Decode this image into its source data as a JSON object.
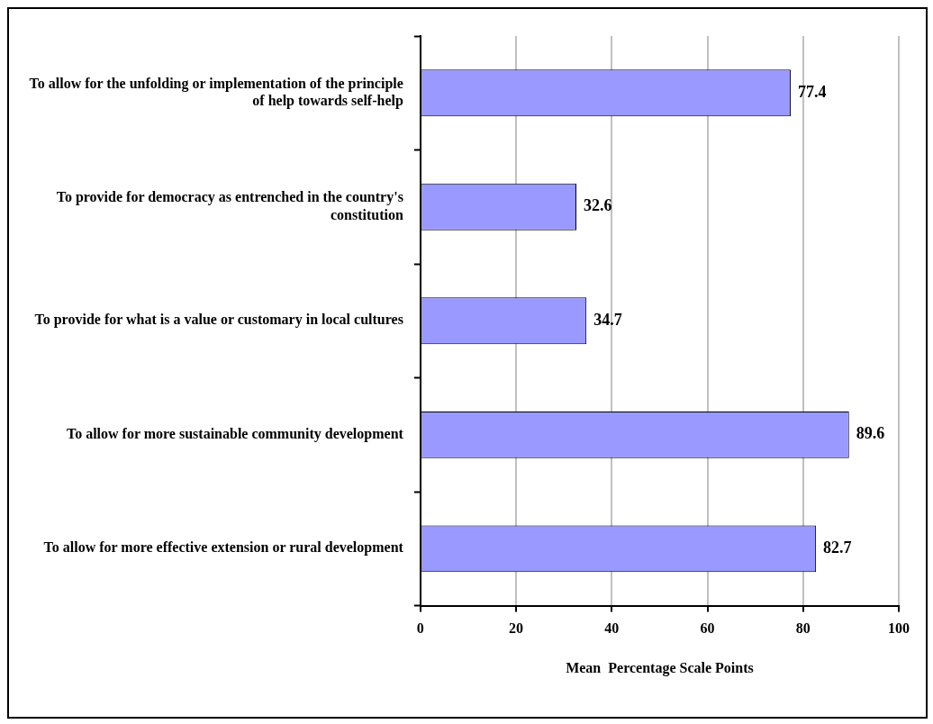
{
  "chart_data": {
    "type": "bar",
    "orientation": "horizontal",
    "xlabel": "Mean  Percentage Scale Points",
    "categories": [
      "To allow for the unfolding or implementation of the principle of help towards self-help",
      "To provide for democracy as entrenched in the country's constitution",
      "To provide for what is a value or customary in local cultures",
      "To allow for more sustainable community development",
      "To allow for more effective extension or rural development"
    ],
    "values": [
      77.4,
      32.6,
      34.7,
      89.6,
      82.7
    ],
    "color": "#9999ff",
    "xlim": [
      0,
      100
    ],
    "xticks": [
      0,
      20,
      40,
      60,
      80,
      100
    ],
    "grid": "x",
    "data_labels": true
  }
}
